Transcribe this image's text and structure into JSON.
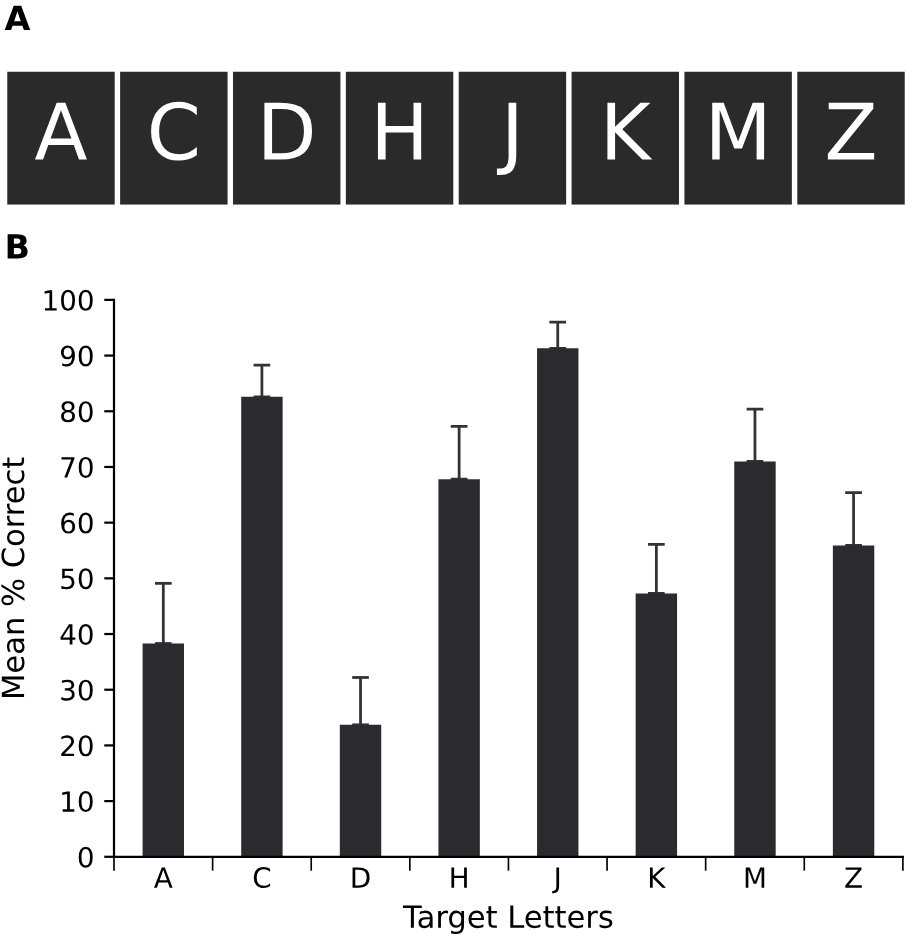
{
  "chart_data": [
    {
      "type": "other",
      "title": "A",
      "annotations": [
        "A",
        "C",
        "D",
        "H",
        "J",
        "K",
        "M",
        "Z"
      ]
    },
    {
      "type": "bar",
      "title": "B",
      "xlabel": "Target Letters",
      "ylabel": "Mean % Correct",
      "categories": [
        "A",
        "C",
        "D",
        "H",
        "J",
        "K",
        "M",
        "Z"
      ],
      "values": [
        38.3,
        82.6,
        23.7,
        67.8,
        91.3,
        47.3,
        71,
        55.9
      ],
      "errors": [
        [
          38.3,
          49.1
        ],
        [
          82.6,
          88.3
        ],
        [
          23.7,
          32.2
        ],
        [
          67.8,
          77.3
        ],
        [
          91.3,
          96
        ],
        [
          47.3,
          56.1
        ],
        [
          71,
          80.4
        ],
        [
          55.9,
          65.4
        ]
      ],
      "color": "#2b2b2f",
      "ylim": [
        0,
        100
      ],
      "yticks": [
        0,
        10,
        20,
        30,
        40,
        50,
        60,
        70,
        80,
        90,
        100
      ],
      "grid": false,
      "legend": false
    }
  ]
}
